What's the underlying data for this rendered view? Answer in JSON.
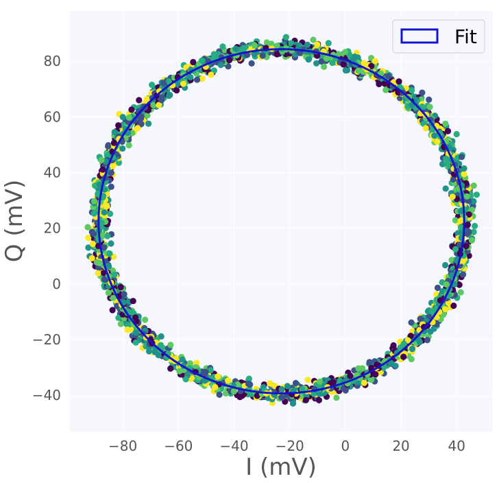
{
  "chart_data": {
    "type": "scatter",
    "title": "",
    "xlabel": "I (mV)",
    "ylabel": "Q (mV)",
    "xlim": [
      -99,
      53
    ],
    "ylim": [
      -53,
      98
    ],
    "xticks": [
      -80,
      -60,
      -40,
      -20,
      0,
      20,
      40
    ],
    "yticks": [
      -40,
      -20,
      0,
      20,
      40,
      60,
      80
    ],
    "grid": true,
    "legend": {
      "placement": "top-right",
      "entries": [
        "Fit"
      ]
    },
    "fit": {
      "type": "circle",
      "center": [
        -23,
        22.5
      ],
      "radius_x": 65.7,
      "radius_y": 61.8,
      "color": "#1414cc"
    },
    "scatter": {
      "points_per_run": 430,
      "colormap": [
        "#440154",
        "#3b528b",
        "#21918c",
        "#27ad81",
        "#5ec962",
        "#fde725"
      ],
      "noise_mV": 1.6
    },
    "colors": {
      "background": "#f5f7fc",
      "grid": "#ffffff",
      "text": "#555555"
    }
  }
}
